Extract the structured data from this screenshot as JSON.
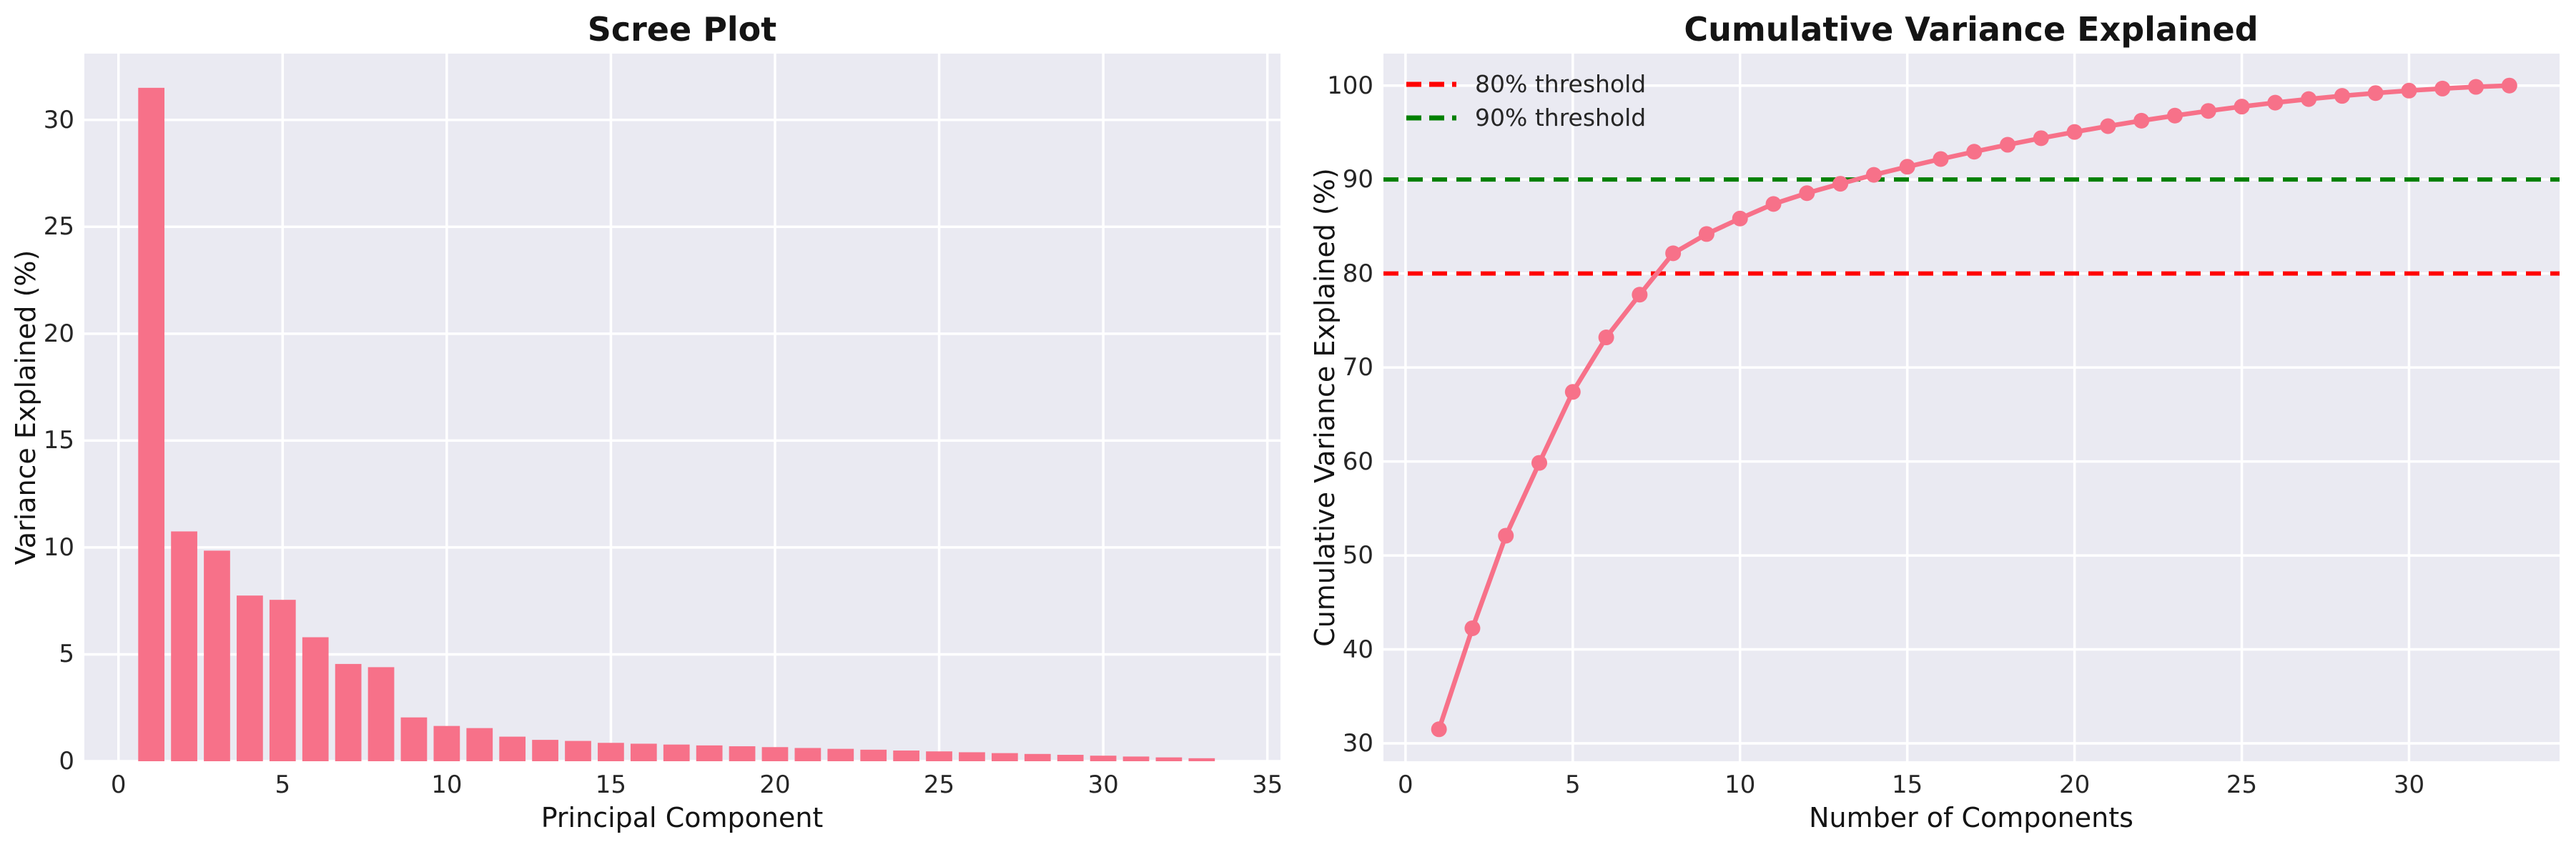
{
  "style": {
    "figure_background": "#ffffff",
    "axes_background": "#eaeaf2",
    "grid_color": "#ffffff",
    "series_color": "#f77189",
    "text_color": "#262626",
    "title_color": "#141414"
  },
  "chart_data": [
    {
      "type": "bar",
      "title": "Scree Plot",
      "xlabel": "Principal Component",
      "ylabel": "Variance Explained (%)",
      "x": [
        1,
        2,
        3,
        4,
        5,
        6,
        7,
        8,
        9,
        10,
        11,
        12,
        13,
        14,
        15,
        16,
        17,
        18,
        19,
        20,
        21,
        22,
        23,
        24,
        25,
        26,
        27,
        28,
        29,
        30,
        31,
        32,
        33
      ],
      "values": [
        31.5,
        10.75,
        9.85,
        7.75,
        7.55,
        5.8,
        4.55,
        4.4,
        2.05,
        1.65,
        1.55,
        1.15,
        1.0,
        0.95,
        0.86,
        0.82,
        0.78,
        0.74,
        0.7,
        0.66,
        0.62,
        0.58,
        0.54,
        0.5,
        0.46,
        0.42,
        0.38,
        0.34,
        0.3,
        0.26,
        0.22,
        0.18,
        0.14
      ],
      "bar_color": "#f77189",
      "bar_width": 0.8,
      "grid": true,
      "xlim": [
        -1.04,
        35.4
      ],
      "ylim": [
        0,
        33.1
      ],
      "xticks": [
        0,
        5,
        10,
        15,
        20,
        25,
        30,
        35
      ],
      "yticks": [
        0,
        5,
        10,
        15,
        20,
        25,
        30
      ]
    },
    {
      "type": "line",
      "title": "Cumulative Variance Explained",
      "xlabel": "Number of Components",
      "ylabel": "Cumulative Variance Explained (%)",
      "x": [
        1,
        2,
        3,
        4,
        5,
        6,
        7,
        8,
        9,
        10,
        11,
        12,
        13,
        14,
        15,
        16,
        17,
        18,
        19,
        20,
        21,
        22,
        23,
        24,
        25,
        26,
        27,
        28,
        29,
        30,
        31,
        32,
        33
      ],
      "values": [
        31.5,
        42.25,
        52.1,
        59.85,
        67.4,
        73.2,
        77.75,
        82.15,
        84.2,
        85.85,
        87.4,
        88.55,
        89.55,
        90.5,
        91.36,
        92.18,
        92.96,
        93.7,
        94.4,
        95.06,
        95.68,
        96.26,
        96.8,
        97.3,
        97.76,
        98.18,
        98.56,
        98.9,
        99.2,
        99.46,
        99.68,
        99.86,
        100.0
      ],
      "line_color": "#f77189",
      "marker": "circle",
      "grid": true,
      "xlim": [
        -0.66,
        34.5
      ],
      "ylim": [
        28.1,
        103.4
      ],
      "xticks": [
        0,
        5,
        10,
        15,
        20,
        25,
        30
      ],
      "yticks": [
        30,
        40,
        50,
        60,
        70,
        80,
        90,
        100
      ],
      "thresholds": [
        {
          "label": "80% threshold",
          "value": 80,
          "color": "#ff0000",
          "style": "dashed"
        },
        {
          "label": "90% threshold",
          "value": 90,
          "color": "#008000",
          "style": "dashed"
        }
      ],
      "legend_position": "upper left"
    }
  ]
}
